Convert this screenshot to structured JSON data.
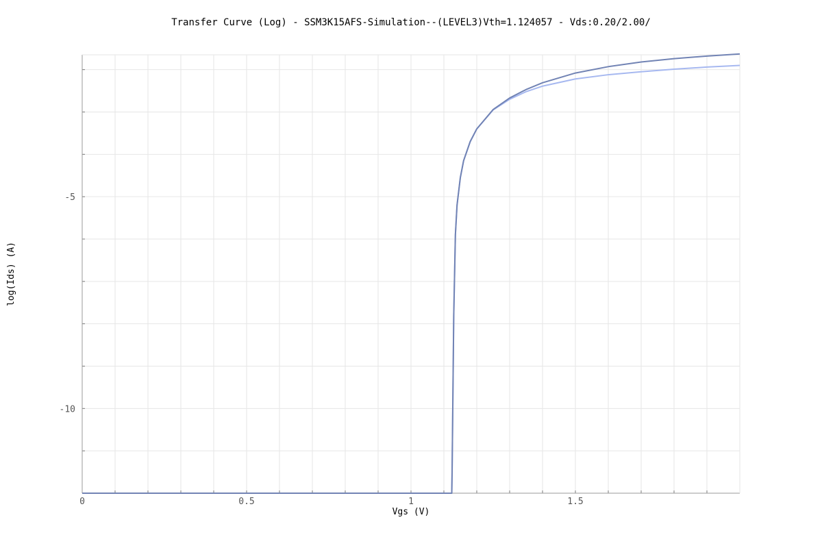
{
  "chart_data": {
    "type": "line",
    "title": "Transfer Curve (Log) - SSM3K15AFS-Simulation--(LEVEL3)Vth=1.124057 - Vds:0.20/2.00/",
    "xlabel": "Vgs (V)",
    "ylabel": "log(Ids) (A)",
    "xlim": [
      0,
      2.0
    ],
    "ylim": [
      -12,
      -1.65
    ],
    "x_ticks": [
      0,
      0.5,
      1,
      1.5
    ],
    "x_tick_labels": [
      "0",
      "0.5",
      "1",
      "1.5"
    ],
    "x_minor_step": 0.1,
    "y_ticks": [
      -5,
      -10
    ],
    "y_tick_labels": [
      "-5",
      "-10"
    ],
    "y_minor_step": 1,
    "grid": true,
    "colors": {
      "series_1": "#a6b8f0",
      "series_2": "#7183b4"
    },
    "series": [
      {
        "x": [
          0,
          1.124,
          1.125,
          1.13,
          1.135,
          1.14,
          1.15,
          1.16,
          1.18,
          1.2,
          1.25,
          1.3,
          1.35,
          1.4,
          1.5,
          1.6,
          1.7,
          1.8,
          1.9,
          2.0
        ],
        "y": [
          -12,
          -12,
          -11.5,
          -7.8,
          -5.9,
          -5.2,
          -4.55,
          -4.15,
          -3.7,
          -3.4,
          -2.95,
          -2.7,
          -2.52,
          -2.39,
          -2.22,
          -2.12,
          -2.05,
          -1.99,
          -1.94,
          -1.9
        ]
      },
      {
        "x": [
          0,
          1.124,
          1.125,
          1.13,
          1.135,
          1.14,
          1.15,
          1.16,
          1.18,
          1.2,
          1.25,
          1.3,
          1.35,
          1.4,
          1.5,
          1.6,
          1.7,
          1.8,
          1.9,
          2.0
        ],
        "y": [
          -12,
          -12,
          -11.5,
          -7.8,
          -5.9,
          -5.2,
          -4.55,
          -4.15,
          -3.7,
          -3.4,
          -2.94,
          -2.67,
          -2.47,
          -2.31,
          -2.08,
          -1.93,
          -1.82,
          -1.74,
          -1.68,
          -1.63
        ]
      }
    ]
  }
}
